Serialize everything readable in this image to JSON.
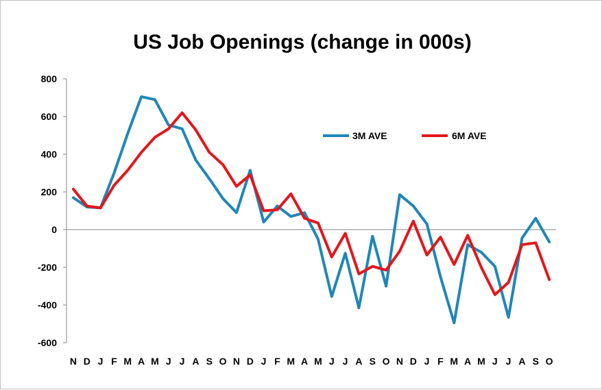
{
  "chart_data": {
    "type": "line",
    "title": "US Job Openings (change in 000s)",
    "xlabel": "",
    "ylabel": "",
    "ylim": [
      -600,
      800
    ],
    "yticks": [
      800,
      600,
      400,
      200,
      0,
      -200,
      -400,
      -600
    ],
    "grid": false,
    "legend_position": "top-right",
    "categories": [
      "N",
      "D",
      "J",
      "F",
      "M",
      "A",
      "M",
      "J",
      "J",
      "A",
      "S",
      "O",
      "N",
      "D",
      "J",
      "F",
      "M",
      "A",
      "M",
      "J",
      "J",
      "A",
      "S",
      "O",
      "N",
      "D",
      "J",
      "F",
      "M",
      "A",
      "M",
      "J",
      "J",
      "A",
      "S",
      "O"
    ],
    "series": [
      {
        "name": "3M AVE",
        "color": "#1f86b7",
        "values": [
          170,
          120,
          115,
          300,
          510,
          705,
          690,
          555,
          535,
          370,
          270,
          165,
          90,
          315,
          40,
          125,
          70,
          90,
          -50,
          -355,
          -125,
          -415,
          -35,
          -300,
          185,
          125,
          30,
          -250,
          -495,
          -80,
          -120,
          -195,
          -465,
          -45,
          60,
          -65
        ]
      },
      {
        "name": "6M AVE",
        "color": "#e3161b",
        "values": [
          215,
          125,
          115,
          235,
          315,
          410,
          490,
          535,
          620,
          530,
          410,
          345,
          230,
          290,
          100,
          105,
          190,
          60,
          35,
          -145,
          -20,
          -235,
          -195,
          -215,
          -115,
          45,
          -135,
          -40,
          -185,
          -30,
          -200,
          -345,
          -280,
          -80,
          -70,
          -265
        ]
      }
    ]
  }
}
